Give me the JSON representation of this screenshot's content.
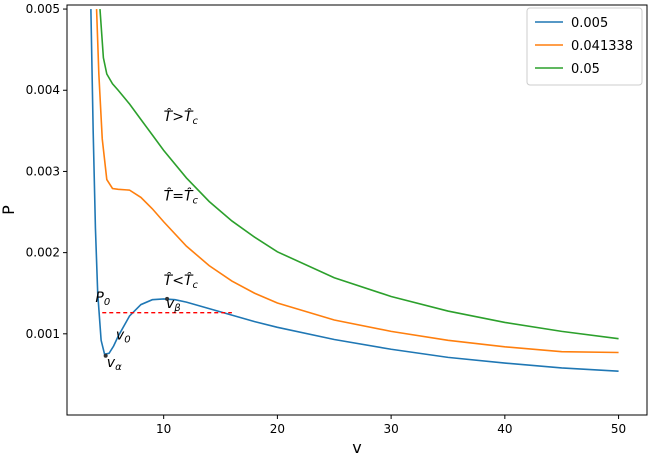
{
  "chart_data": {
    "type": "line",
    "title": "",
    "xlabel": "v",
    "ylabel": "P",
    "xlim": [
      1.5,
      52.5
    ],
    "ylim": [
      0.0,
      0.00505
    ],
    "xticks": [
      10,
      20,
      30,
      40,
      50
    ],
    "xtick_labels": [
      "10",
      "20",
      "30",
      "40",
      "50"
    ],
    "yticks": [
      0.001,
      0.002,
      0.003,
      0.004,
      0.005
    ],
    "ytick_labels": [
      "0.001",
      "0.002",
      "0.003",
      "0.004",
      "0.005"
    ],
    "grid": false,
    "legend": "top-right",
    "colors": [
      "#1f77b4",
      "#ff7f0e",
      "#2ca02c"
    ],
    "series": [
      {
        "name": "0.005",
        "x": [
          3.6,
          3.8,
          4.0,
          4.2,
          4.5,
          4.8,
          5.2,
          5.6,
          6.0,
          7.0,
          8.0,
          9.0,
          10.0,
          11.0,
          12.0,
          14.0,
          16.0,
          18.0,
          20.0,
          25.0,
          30.0,
          35.0,
          40.0,
          45.0,
          50.0
        ],
        "y": [
          0.005,
          0.0035,
          0.0023,
          0.0015,
          0.00092,
          0.00075,
          0.00076,
          0.00085,
          0.00097,
          0.00122,
          0.00136,
          0.00142,
          0.00143,
          0.00142,
          0.00139,
          0.00131,
          0.00123,
          0.00115,
          0.00108,
          0.00093,
          0.00081,
          0.00071,
          0.00064,
          0.00058,
          0.00054
        ]
      },
      {
        "name": "0.041338",
        "x": [
          4.1,
          4.3,
          4.6,
          5.0,
          5.5,
          6.0,
          7.0,
          8.0,
          9.0,
          10.0,
          12.0,
          14.0,
          16.0,
          18.0,
          20.0,
          25.0,
          30.0,
          35.0,
          40.0,
          45.0,
          50.0
        ],
        "y": [
          0.005,
          0.0042,
          0.0034,
          0.0029,
          0.00279,
          0.00278,
          0.00277,
          0.00268,
          0.00254,
          0.00238,
          0.00208,
          0.00184,
          0.00165,
          0.0015,
          0.00138,
          0.00117,
          0.00103,
          0.00092,
          0.00084,
          0.00078,
          0.00077
        ]
      },
      {
        "name": "0.05",
        "x": [
          4.4,
          4.7,
          5.0,
          5.5,
          6.0,
          7.0,
          8.0,
          9.0,
          10.0,
          12.0,
          14.0,
          16.0,
          18.0,
          20.0,
          25.0,
          30.0,
          35.0,
          40.0,
          45.0,
          50.0
        ],
        "y": [
          0.005,
          0.0044,
          0.0042,
          0.00408,
          0.004,
          0.00383,
          0.00364,
          0.00345,
          0.00326,
          0.00292,
          0.00263,
          0.00239,
          0.00219,
          0.00201,
          0.00169,
          0.00146,
          0.00128,
          0.00114,
          0.00103,
          0.00094
        ]
      }
    ],
    "hline": {
      "y": 0.00126,
      "x_from": 4.6,
      "x_to": 16.0,
      "color": "#ff0000",
      "style": "dashed"
    },
    "markers": [
      {
        "x": 4.9,
        "y": 0.00073
      },
      {
        "x": 10.3,
        "y": 0.00143
      }
    ],
    "annotations": [
      {
        "text": "T̂>T̂c",
        "x": 10.0,
        "y": 0.00362
      },
      {
        "text": "T̂=T̂c",
        "x": 10.0,
        "y": 0.00264
      },
      {
        "text": "T̂<T̂c",
        "x": 10.0,
        "y": 0.0016
      },
      {
        "text": "P0",
        "x": 4.0,
        "y": 0.00139
      },
      {
        "text": "vβ",
        "x": 10.2,
        "y": 0.00132
      },
      {
        "text": "v0",
        "x": 5.8,
        "y": 0.00093
      },
      {
        "text": "vα",
        "x": 5.0,
        "y": 0.00059
      }
    ]
  }
}
